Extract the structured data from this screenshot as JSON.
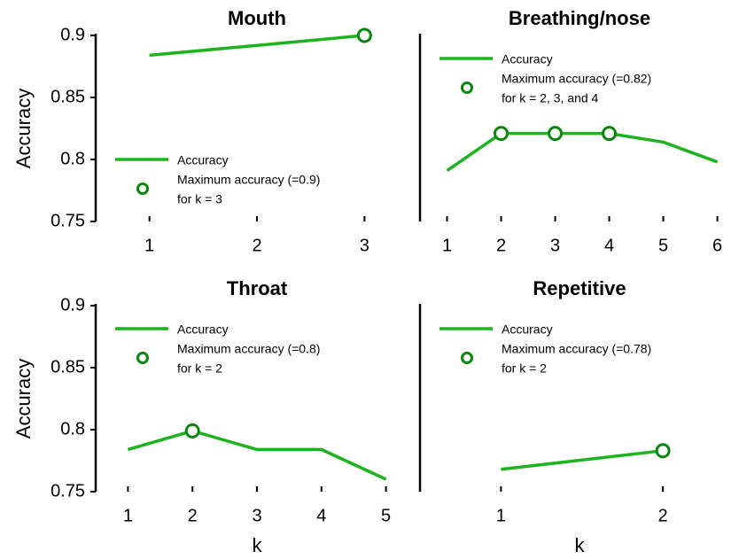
{
  "chart_data": [
    {
      "type": "line",
      "title": "Mouth",
      "ylabel": "Accuracy",
      "x": [
        1,
        2,
        3
      ],
      "xlim": [
        0.5,
        3.5
      ],
      "xticks": [
        1,
        2,
        3
      ],
      "ylim": [
        0.75,
        0.9
      ],
      "yticks": [
        0.75,
        0.8,
        0.85,
        0.9
      ],
      "legend": "lower left",
      "series": [
        {
          "name": "Accuracy",
          "color": "#1db31d",
          "values": [
            0.884,
            0.892,
            0.9
          ]
        },
        {
          "name": [
            "Maximum accuracy (=0.9)",
            "for k = 3"
          ],
          "color": "#0a870a",
          "marker": "circle",
          "values": [
            null,
            null,
            0.9
          ]
        }
      ]
    },
    {
      "type": "line",
      "title": "Breathing/nose",
      "x": [
        1,
        2,
        3,
        4,
        5,
        6
      ],
      "xlim": [
        0.5,
        6.4
      ],
      "xticks": [
        1,
        2,
        3,
        4,
        5,
        6
      ],
      "ylim": [
        0.75,
        0.9
      ],
      "legend": "upper left",
      "series": [
        {
          "name": "Accuracy",
          "color": "#1db31d",
          "values": [
            0.791,
            0.821,
            0.821,
            0.821,
            0.814,
            0.798
          ]
        },
        {
          "name": [
            "Maximum accuracy (=0.82)",
            "for k = 2, 3, and 4"
          ],
          "color": "#0a870a",
          "marker": "circle",
          "values": [
            null,
            0.821,
            0.821,
            0.821,
            null,
            null
          ]
        }
      ]
    },
    {
      "type": "line",
      "title": "Throat",
      "ylabel": "Accuracy",
      "xlabel": "k",
      "x": [
        1,
        2,
        3,
        4,
        5
      ],
      "xlim": [
        0.5,
        5.5
      ],
      "xticks": [
        1,
        2,
        3,
        4,
        5
      ],
      "ylim": [
        0.75,
        0.9
      ],
      "yticks": [
        0.75,
        0.8,
        0.85,
        0.9
      ],
      "legend": "upper left",
      "series": [
        {
          "name": "Accuracy",
          "color": "#1db31d",
          "values": [
            0.784,
            0.799,
            0.784,
            0.784,
            0.76
          ]
        },
        {
          "name": [
            "Maximum accuracy (=0.8)",
            "for k = 2"
          ],
          "color": "#0a870a",
          "marker": "circle",
          "values": [
            null,
            0.799,
            null,
            null,
            null
          ]
        }
      ]
    },
    {
      "type": "line",
      "title": "Repetitive",
      "xlabel": "k",
      "x": [
        1,
        2
      ],
      "xlim": [
        0.5,
        2.47
      ],
      "xticks": [
        1,
        2
      ],
      "ylim": [
        0.75,
        0.9
      ],
      "legend": "upper left",
      "series": [
        {
          "name": "Accuracy",
          "color": "#1db31d",
          "values": [
            0.768,
            0.783
          ]
        },
        {
          "name": [
            "Maximum accuracy (=0.78)",
            "for k = 2"
          ],
          "color": "#0a870a",
          "marker": "circle",
          "values": [
            null,
            0.783
          ]
        }
      ]
    }
  ]
}
